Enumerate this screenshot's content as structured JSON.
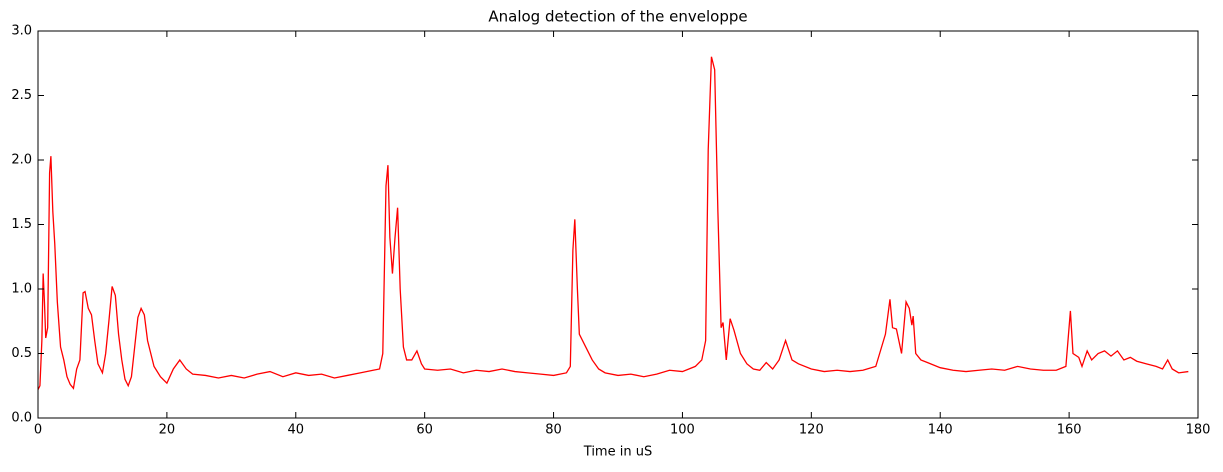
{
  "chart_data": {
    "type": "line",
    "title": "Analog detection of the enveloppe",
    "x_label": "Time in uS",
    "x": [
      0,
      0.3,
      0.6,
      0.8,
      1.0,
      1.2,
      1.5,
      1.8,
      2.0,
      2.3,
      2.6,
      3.0,
      3.5,
      4,
      4.5,
      5,
      5.5,
      6,
      6.5,
      7,
      7.3,
      7.8,
      8.3,
      8.8,
      9.3,
      10,
      10.5,
      11,
      11.5,
      12,
      12.5,
      13,
      13.5,
      14,
      14.5,
      15,
      15.5,
      16,
      16.5,
      17,
      17.5,
      18,
      19,
      20,
      21,
      22,
      23,
      24,
      26,
      28,
      30,
      32,
      34,
      36,
      38,
      40,
      42,
      44,
      46,
      48,
      50,
      52,
      53,
      53.5,
      54,
      54.3,
      54.6,
      55,
      55.4,
      55.8,
      56.2,
      56.7,
      57.2,
      58,
      58.8,
      59.5,
      60,
      62,
      64,
      66,
      68,
      70,
      72,
      74,
      76,
      78,
      80,
      82,
      82.6,
      83,
      83.3,
      83.7,
      84,
      85,
      86,
      87,
      88,
      90,
      92,
      94,
      96,
      98,
      100,
      102,
      103,
      103.6,
      104,
      104.5,
      105,
      105.5,
      106,
      106.3,
      106.8,
      107.4,
      108,
      109,
      110,
      111,
      112,
      113,
      114,
      115,
      116,
      117,
      118,
      120,
      122,
      124,
      126,
      128,
      130,
      131.5,
      132.2,
      132.6,
      133.2,
      134,
      134.7,
      135.2,
      135.6,
      135.8,
      136.2,
      137,
      138,
      140,
      142,
      144,
      146,
      148,
      150,
      152,
      154,
      156,
      158,
      159.5,
      160.2,
      160.6,
      161.5,
      162,
      162.8,
      163.5,
      164.5,
      165.5,
      166.5,
      167.5,
      168.5,
      169.5,
      170.5,
      172,
      173.5,
      174.5,
      175.3,
      176,
      177,
      178.5
    ],
    "values": [
      0.22,
      0.25,
      0.6,
      1.12,
      0.9,
      0.62,
      0.7,
      1.9,
      2.03,
      1.6,
      1.35,
      0.9,
      0.55,
      0.45,
      0.32,
      0.26,
      0.23,
      0.38,
      0.45,
      0.97,
      0.98,
      0.85,
      0.8,
      0.6,
      0.42,
      0.35,
      0.5,
      0.75,
      1.02,
      0.95,
      0.65,
      0.45,
      0.3,
      0.25,
      0.32,
      0.55,
      0.78,
      0.85,
      0.8,
      0.6,
      0.5,
      0.4,
      0.32,
      0.27,
      0.38,
      0.45,
      0.38,
      0.34,
      0.33,
      0.31,
      0.33,
      0.31,
      0.34,
      0.36,
      0.32,
      0.35,
      0.33,
      0.34,
      0.31,
      0.33,
      0.35,
      0.37,
      0.38,
      0.5,
      1.8,
      1.96,
      1.4,
      1.12,
      1.4,
      1.63,
      1.0,
      0.55,
      0.45,
      0.45,
      0.52,
      0.42,
      0.38,
      0.37,
      0.38,
      0.35,
      0.37,
      0.36,
      0.38,
      0.36,
      0.35,
      0.34,
      0.33,
      0.35,
      0.4,
      1.3,
      1.54,
      1.0,
      0.65,
      0.55,
      0.45,
      0.38,
      0.35,
      0.33,
      0.34,
      0.32,
      0.34,
      0.37,
      0.36,
      0.4,
      0.45,
      0.6,
      2.08,
      2.8,
      2.7,
      1.6,
      0.7,
      0.74,
      0.45,
      0.77,
      0.68,
      0.5,
      0.42,
      0.38,
      0.37,
      0.43,
      0.38,
      0.45,
      0.6,
      0.45,
      0.42,
      0.38,
      0.36,
      0.37,
      0.36,
      0.37,
      0.4,
      0.65,
      0.92,
      0.7,
      0.69,
      0.5,
      0.9,
      0.85,
      0.72,
      0.79,
      0.5,
      0.45,
      0.43,
      0.39,
      0.37,
      0.36,
      0.37,
      0.38,
      0.37,
      0.4,
      0.38,
      0.37,
      0.37,
      0.4,
      0.83,
      0.5,
      0.47,
      0.4,
      0.52,
      0.45,
      0.5,
      0.52,
      0.48,
      0.52,
      0.45,
      0.47,
      0.44,
      0.42,
      0.4,
      0.38,
      0.45,
      0.38,
      0.35,
      0.36
    ],
    "color": "#ff0000",
    "xlim": [
      0,
      180
    ],
    "xticks": [
      0,
      20,
      40,
      60,
      80,
      100,
      120,
      140,
      160,
      180
    ],
    "ylim": [
      0,
      3
    ],
    "yticks": [
      {
        "value": 0,
        "label": "0.0"
      },
      0.5,
      {
        "value": 1,
        "label": "1.0"
      },
      1.5,
      {
        "value": 2,
        "label": "2.0"
      },
      2.5,
      {
        "value": 3,
        "label": "3.0"
      }
    ]
  }
}
